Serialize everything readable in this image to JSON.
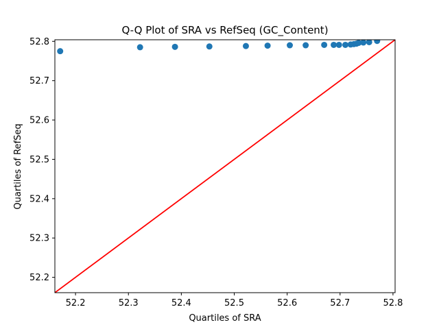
{
  "chart_data": {
    "type": "scatter",
    "title": "Q-Q Plot of SRA vs RefSeq (GC_Content)",
    "xlabel": "Quartiles of SRA",
    "ylabel": "Quartiles of RefSeq",
    "xlim": [
      52.161,
      52.804
    ],
    "ylim": [
      52.161,
      52.804
    ],
    "x_ticks": [
      52.2,
      52.3,
      52.4,
      52.5,
      52.6,
      52.7,
      52.8
    ],
    "y_ticks": [
      52.2,
      52.3,
      52.4,
      52.5,
      52.6,
      52.7,
      52.8
    ],
    "x_tick_labels": [
      "52.2",
      "52.3",
      "52.4",
      "52.5",
      "52.6",
      "52.7",
      "52.8"
    ],
    "y_tick_labels": [
      "52.2",
      "52.3",
      "52.4",
      "52.5",
      "52.6",
      "52.7",
      "52.8"
    ],
    "grid": false,
    "series": [
      {
        "kind": "points",
        "color": "#1f77b4",
        "x": [
          52.171,
          52.322,
          52.388,
          52.453,
          52.522,
          52.563,
          52.605,
          52.635,
          52.67,
          52.688,
          52.698,
          52.71,
          52.72,
          52.726,
          52.731,
          52.735,
          52.744,
          52.755,
          52.77
        ],
        "y": [
          52.775,
          52.785,
          52.786,
          52.787,
          52.788,
          52.789,
          52.79,
          52.79,
          52.791,
          52.791,
          52.791,
          52.791,
          52.792,
          52.793,
          52.794,
          52.796,
          52.797,
          52.798,
          52.801
        ]
      },
      {
        "kind": "reference-line",
        "color": "#ff0000",
        "x": [
          52.161,
          52.804
        ],
        "y": [
          52.161,
          52.804
        ]
      }
    ]
  }
}
